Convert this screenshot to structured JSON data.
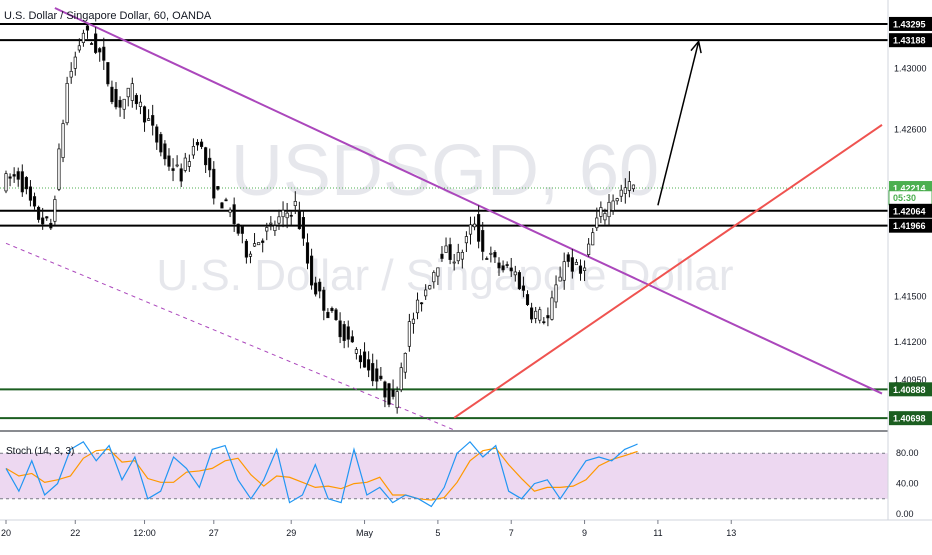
{
  "header": {
    "title": "U.S. Dollar / Singapore Dollar, 60, OANDA"
  },
  "watermark": {
    "symbol": "USDSGD, 60",
    "name": "U.S. Dollar / Singapore Dollar"
  },
  "stoch": {
    "label": "Stoch (14, 3, 3)",
    "ticks": [
      "80.00",
      "40.00",
      "0.00"
    ],
    "upper": 80,
    "lower": 20
  },
  "colors": {
    "up": "#26a69a",
    "down": "#000000",
    "candle": "#111111",
    "resistance_line": "#000000",
    "support_line": "#1b5e20",
    "downtrend_line": "#ab47bc",
    "uptrend_line": "#ef5350",
    "current_price": "#4caf50",
    "stoch_k": "#2196f3",
    "stoch_d": "#ff9800",
    "stoch_band": "#e1bee7"
  },
  "chart_data": {
    "type": "candlestick",
    "symbol": "USDSGD",
    "timeframe": "60",
    "x_ticks": [
      "20",
      "22",
      "12:00",
      "27",
      "29",
      "May",
      "5",
      "7",
      "9",
      "11",
      "13"
    ],
    "y_ticks": [
      "1.43000",
      "1.42600",
      "1.41500",
      "1.41200",
      "1.40950"
    ],
    "price_labels": [
      {
        "label": "1.43295",
        "value": 1.43295,
        "style": "level"
      },
      {
        "label": "1.43188",
        "value": 1.43188,
        "style": "level"
      },
      {
        "label": "1.42214",
        "value": 1.42214,
        "style": "current"
      },
      {
        "label": "05:30",
        "value": 1.4215,
        "style": "timer"
      },
      {
        "label": "1.42064",
        "value": 1.42064,
        "style": "level"
      },
      {
        "label": "1.41966",
        "value": 1.41966,
        "style": "level"
      },
      {
        "label": "1.40888",
        "value": 1.40888,
        "style": "support"
      },
      {
        "label": "1.40698",
        "value": 1.40698,
        "style": "support"
      }
    ],
    "price_path": [
      [
        0,
        1.4225
      ],
      [
        4,
        1.423
      ],
      [
        8,
        1.4205
      ],
      [
        12,
        1.4195
      ],
      [
        16,
        1.429
      ],
      [
        20,
        1.4325
      ],
      [
        24,
        1.431
      ],
      [
        28,
        1.4275
      ],
      [
        32,
        1.4285
      ],
      [
        36,
        1.4265
      ],
      [
        40,
        1.424
      ],
      [
        44,
        1.423
      ],
      [
        48,
        1.4255
      ],
      [
        52,
        1.422
      ],
      [
        56,
        1.4205
      ],
      [
        60,
        1.418
      ],
      [
        64,
        1.419
      ],
      [
        68,
        1.42
      ],
      [
        72,
        1.421
      ],
      [
        76,
        1.416
      ],
      [
        80,
        1.414
      ],
      [
        84,
        1.4125
      ],
      [
        88,
        1.411
      ],
      [
        92,
        1.4095
      ],
      [
        96,
        1.408
      ],
      [
        100,
        1.413
      ],
      [
        104,
        1.4155
      ],
      [
        108,
        1.418
      ],
      [
        112,
        1.4175
      ],
      [
        116,
        1.42
      ],
      [
        118,
        1.418
      ],
      [
        122,
        1.417
      ],
      [
        126,
        1.4165
      ],
      [
        130,
        1.414
      ],
      [
        134,
        1.4135
      ],
      [
        138,
        1.4175
      ],
      [
        142,
        1.4165
      ],
      [
        146,
        1.42
      ],
      [
        150,
        1.4215
      ],
      [
        154,
        1.4222
      ]
    ],
    "stoch_values": [
      60,
      30,
      70,
      25,
      40,
      85,
      95,
      70,
      90,
      45,
      75,
      20,
      30,
      75,
      60,
      35,
      85,
      90,
      45,
      20,
      45,
      85,
      15,
      25,
      65,
      20,
      15,
      85,
      25,
      35,
      15,
      25,
      20,
      10,
      35,
      80,
      95,
      75,
      90,
      30,
      20,
      40,
      45,
      20,
      45,
      70,
      75,
      70,
      85,
      92
    ],
    "stoch_ylim": [
      0,
      100
    ],
    "ylim": [
      1.4062,
      1.434
    ],
    "bars": 155,
    "extra_bars": 60,
    "xtick_index": [
      0,
      17,
      34,
      51,
      70,
      88,
      106,
      124,
      142,
      160,
      178
    ],
    "levels": [
      {
        "type": "resistance",
        "price": 1.43295
      },
      {
        "type": "resistance",
        "price": 1.43188
      },
      {
        "type": "resistance",
        "price": 1.42064
      },
      {
        "type": "resistance",
        "price": 1.41966
      },
      {
        "type": "support",
        "price": 1.40888
      },
      {
        "type": "support",
        "price": 1.40698
      }
    ],
    "current_price": 1.42214,
    "trendlines": [
      {
        "type": "downtrend",
        "from": [
          12,
          1.434
        ],
        "to": [
          215,
          1.4086
        ]
      },
      {
        "type": "downtrend-dashed",
        "from": [
          0,
          1.4185
        ],
        "to": [
          110,
          1.4062
        ]
      },
      {
        "type": "uptrend",
        "from": [
          110,
          1.407
        ],
        "to": [
          215,
          1.4263
        ]
      }
    ],
    "projection_arrow": {
      "from": [
        160,
        1.421
      ],
      "to": [
        170,
        1.4318
      ]
    }
  }
}
